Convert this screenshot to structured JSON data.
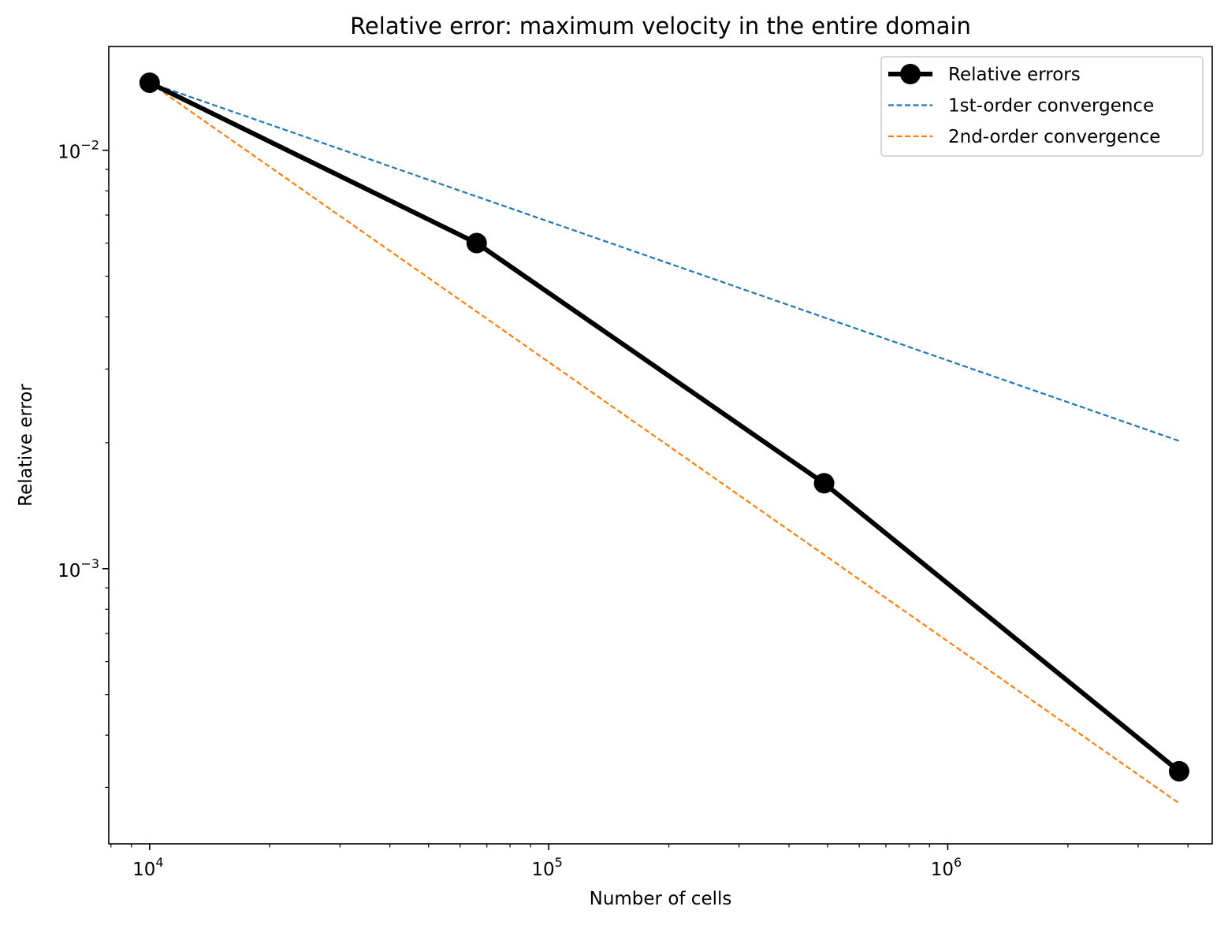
{
  "chart_data": {
    "type": "line",
    "title": "Relative error: maximum velocity in the entire domain",
    "xlabel": "Number of cells",
    "ylabel": "Relative error",
    "xscale": "log",
    "yscale": "log",
    "xlim": [
      7900,
      4600000
    ],
    "ylim": [
      0.00022,
      0.0177
    ],
    "grid": false,
    "legend_location": "top-right",
    "xticks": [
      {
        "value": 10000,
        "base": "10",
        "exp": "4"
      },
      {
        "value": 100000,
        "base": "10",
        "exp": "5"
      },
      {
        "value": 1000000,
        "base": "10",
        "exp": "6"
      }
    ],
    "yticks": [
      {
        "value": 0.001,
        "base": "10",
        "exp": "−3"
      },
      {
        "value": 0.01,
        "base": "10",
        "exp": "−2"
      }
    ],
    "series": [
      {
        "name": "Relative errors",
        "color": "#000000",
        "style": "solid",
        "marker": "circle",
        "x": [
          10000,
          66000,
          490000,
          3800000
        ],
        "y": [
          0.0145,
          0.006,
          0.0016,
          0.000328
        ]
      },
      {
        "name": "1st-order convergence",
        "color": "#1f77b4",
        "style": "dashed",
        "marker": "none",
        "x": [
          10000,
          3800000
        ],
        "y": [
          0.0145,
          0.00202
        ]
      },
      {
        "name": "2nd-order convergence",
        "color": "#ff7f0e",
        "style": "dashed",
        "marker": "none",
        "x": [
          10000,
          3800000
        ],
        "y": [
          0.0145,
          0.000275
        ]
      }
    ]
  }
}
